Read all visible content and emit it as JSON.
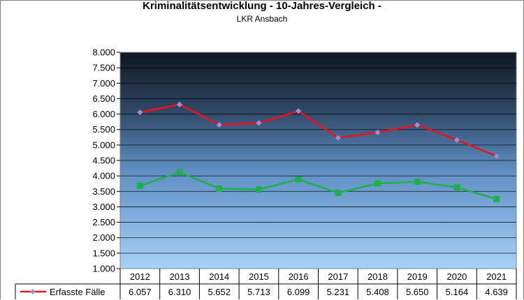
{
  "chart_data": {
    "type": "line",
    "title": "Kriminalitätsentwicklung  - 10-Jahres-Vergleich  -",
    "subtitle": "LKR Ansbach",
    "categories": [
      "2012",
      "2013",
      "2014",
      "2015",
      "2016",
      "2017",
      "2018",
      "2019",
      "2020",
      "2021"
    ],
    "ylim": [
      1000,
      8000
    ],
    "y_ticks": [
      "1.000",
      "1.500",
      "2.000",
      "2.500",
      "3.000",
      "3.500",
      "4.000",
      "4.500",
      "5.000",
      "5.500",
      "6.000",
      "6.500",
      "7.000",
      "7.500",
      "8.000"
    ],
    "grid": true,
    "background": "gradient dark navy (top) to light sky blue (bottom)",
    "series": [
      {
        "name": "Erfasste Fälle",
        "color": "#e8141c",
        "marker": "diamond",
        "marker_color": "#9b8fd6",
        "values": [
          6057,
          6310,
          5652,
          5713,
          6099,
          5231,
          5408,
          5650,
          5164,
          4639
        ],
        "labels": [
          "6.057",
          "6.310",
          "5.652",
          "5.713",
          "6.099",
          "5.231",
          "5.408",
          "5.650",
          "5.164",
          "4.639"
        ]
      },
      {
        "name": "",
        "color": "#1fb04c",
        "marker": "square",
        "marker_color": "#1fb04c",
        "values": [
          3680,
          4120,
          3590,
          3560,
          3890,
          3450,
          3760,
          3810,
          3630,
          3250
        ],
        "labels": []
      }
    ]
  }
}
